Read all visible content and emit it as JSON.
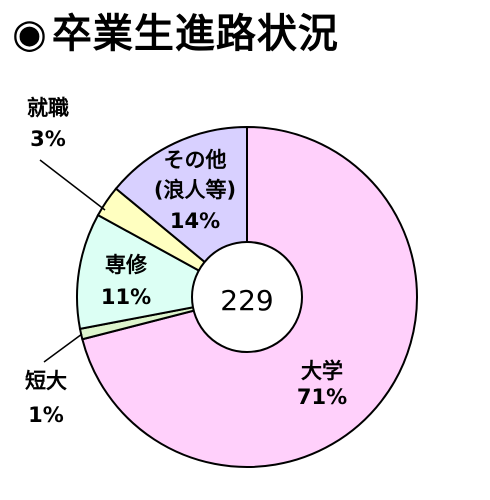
{
  "title": {
    "bullet": "◉",
    "text": "卒業生進路状況"
  },
  "chart_data": {
    "type": "pie",
    "style": "donut",
    "center_label": "229",
    "slices": [
      {
        "name": "大学",
        "value": 71,
        "label": "71%",
        "color": "#ffd0fb"
      },
      {
        "name": "短大",
        "value": 1,
        "label": "1%",
        "color": "#ddf5cc"
      },
      {
        "name": "専修",
        "value": 11,
        "label": "11%",
        "color": "#dcfff4"
      },
      {
        "name": "就職",
        "value": 3,
        "label": "3%",
        "color": "#ffffc0"
      },
      {
        "name": "その他\n(浪人等)",
        "value": 14,
        "label": "14%",
        "color": "#d8d0ff"
      }
    ]
  }
}
